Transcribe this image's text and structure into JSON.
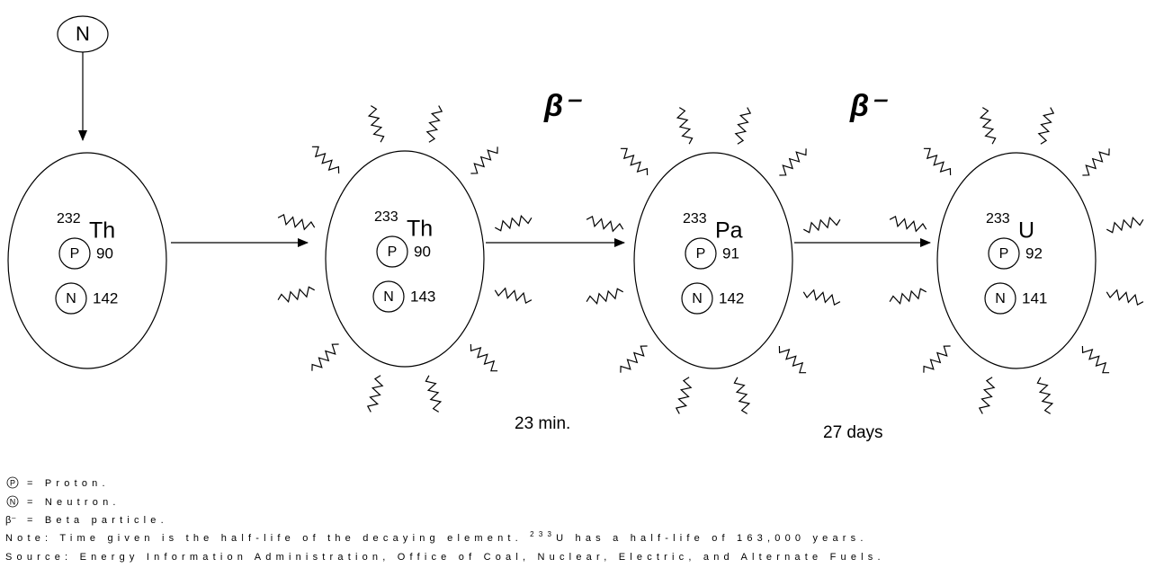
{
  "incoming": {
    "symbol": "N"
  },
  "nuclei": [
    {
      "mass": "232",
      "element": "Th",
      "particles": [
        {
          "symbol": "P",
          "count": 90
        },
        {
          "symbol": "N",
          "count": 142
        }
      ]
    },
    {
      "mass": "233",
      "element": "Th",
      "particles": [
        {
          "symbol": "P",
          "count": 90
        },
        {
          "symbol": "N",
          "count": 143
        }
      ]
    },
    {
      "mass": "233",
      "element": "Pa",
      "particles": [
        {
          "symbol": "P",
          "count": 91
        },
        {
          "symbol": "N",
          "count": 142
        }
      ]
    },
    {
      "mass": "233",
      "element": "U",
      "particles": [
        {
          "symbol": "P",
          "count": 92
        },
        {
          "symbol": "N",
          "count": 141
        }
      ]
    }
  ],
  "decays": [
    {
      "particle": "β⁻",
      "time": "23 min."
    },
    {
      "particle": "β⁻",
      "time": "27 days"
    }
  ],
  "legend": [
    {
      "symbol": "P",
      "text": "= Proton."
    },
    {
      "symbol": "N",
      "text": "= Neutron."
    },
    {
      "symbol": "β⁻",
      "text": "= Beta particle."
    }
  ],
  "note": {
    "prefix": "Note: Time given is the half-life of the decaying element. ",
    "sup": "233",
    "rest": "U has a half-life of 163,000 years."
  },
  "source": "Source: Energy Information Administration, Office of Coal, Nuclear, Electric, and Alternate Fuels."
}
